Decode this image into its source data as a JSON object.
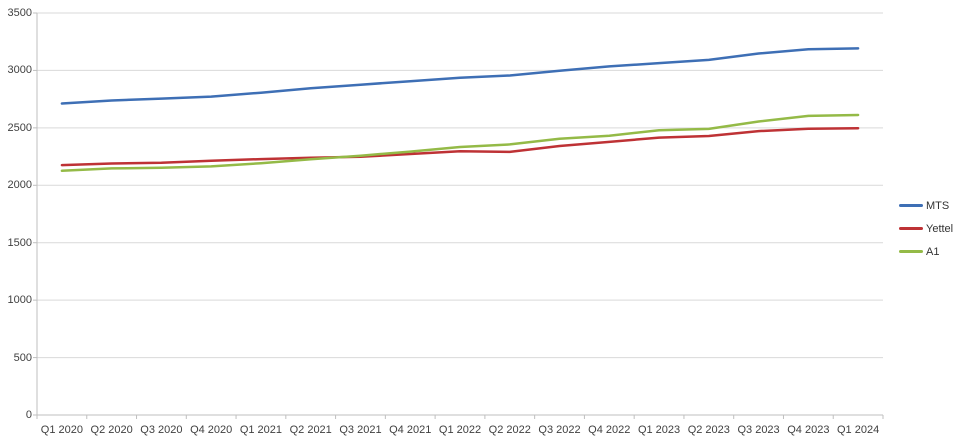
{
  "chart_data": {
    "type": "line",
    "title": "",
    "xlabel": "",
    "ylabel": "",
    "categories": [
      "Q1 2020",
      "Q2 2020",
      "Q3 2020",
      "Q4 2020",
      "Q1 2021",
      "Q2 2021",
      "Q3 2021",
      "Q4 2021",
      "Q1 2022",
      "Q2 2022",
      "Q3 2022",
      "Q4 2022",
      "Q1 2023",
      "Q2 2023",
      "Q3 2023",
      "Q4 2023",
      "Q1 2024"
    ],
    "series": [
      {
        "name": "MTS",
        "color": "#3E6FB5",
        "values": [
          2712,
          2738,
          2755,
          2772,
          2806,
          2845,
          2876,
          2906,
          2936,
          2956,
          2998,
          3035,
          3064,
          3092,
          3147,
          3184,
          3192
        ]
      },
      {
        "name": "Yettel",
        "color": "#BE3235",
        "values": [
          2176,
          2190,
          2197,
          2214,
          2228,
          2240,
          2248,
          2272,
          2297,
          2291,
          2342,
          2378,
          2415,
          2429,
          2472,
          2492,
          2497
        ]
      },
      {
        "name": "A1",
        "color": "#94BA47",
        "values": [
          2126,
          2147,
          2152,
          2164,
          2192,
          2226,
          2258,
          2293,
          2333,
          2356,
          2405,
          2431,
          2480,
          2491,
          2555,
          2604,
          2612
        ]
      }
    ],
    "ylim": [
      0,
      3500
    ],
    "ytick_interval": 500,
    "yticks": [
      "0",
      "500",
      "1000",
      "1500",
      "2000",
      "2500",
      "3000",
      "3500"
    ],
    "grid": true,
    "legend_position": "right"
  },
  "legend": {
    "items": [
      {
        "label": "MTS"
      },
      {
        "label": "Yettel"
      },
      {
        "label": "A1"
      }
    ]
  },
  "style_colors": {
    "gridline": "#D9D9D9",
    "axis": "#BFBFBF",
    "tick": "#BFBFBF",
    "text": "#404040",
    "background": "#FFFFFF"
  }
}
